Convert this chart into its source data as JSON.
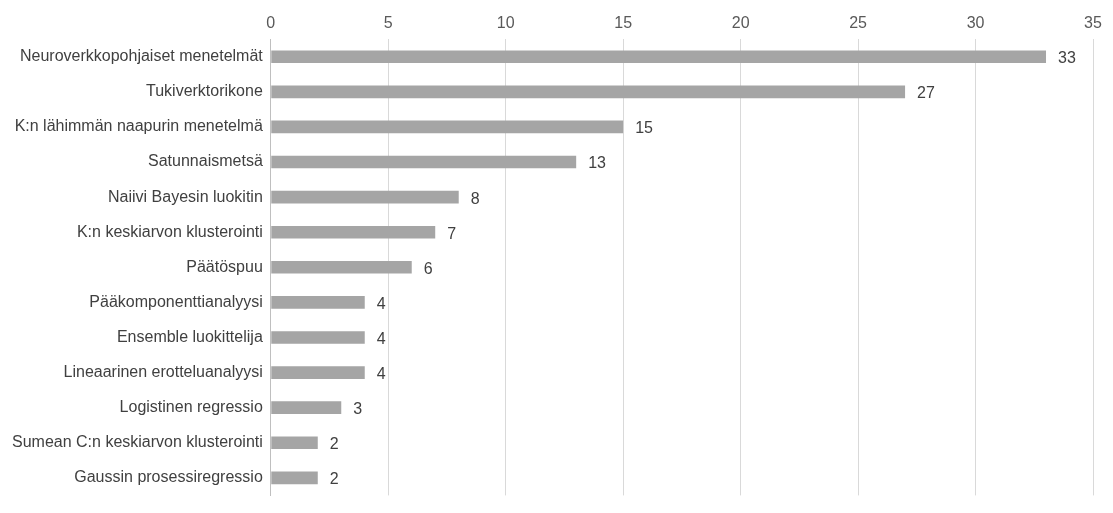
{
  "chart_data": {
    "type": "bar",
    "orientation": "horizontal",
    "categories": [
      "Neuroverkkopohjaiset menetelmät",
      "Tukiverktorikone",
      "K:n lähimmän naapurin menetelmä",
      "Satunnaismetsä",
      "Naiivi Bayesin luokitin",
      "K:n keskiarvon klusterointi",
      "Päätöspuu",
      "Pääkomponenttianalyysi",
      "Ensemble luokittelija",
      "Lineaarinen erotteluanalyysi",
      "Logistinen regressio",
      "Sumean C:n keskiarvon klusterointi",
      "Gaussin prosessiregressio"
    ],
    "values": [
      33,
      27,
      15,
      13,
      8,
      7,
      6,
      4,
      4,
      4,
      3,
      2,
      2
    ],
    "color": "#a5a5a5",
    "xlim": [
      0,
      35
    ],
    "xticks": [
      0,
      5,
      10,
      15,
      20,
      25,
      30,
      35
    ],
    "grid": "x",
    "data_labels": true
  }
}
